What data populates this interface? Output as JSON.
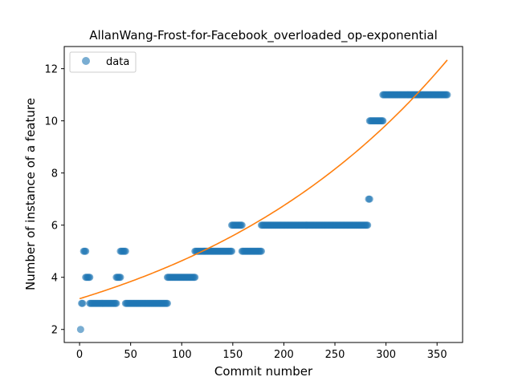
{
  "chart_data": {
    "type": "scatter",
    "title": "AllanWang-Frost-for-Facebook_overloaded_op-exponential",
    "xlabel": "Commit number",
    "ylabel": "Number of instance of a feature",
    "xlim": [
      -15,
      375
    ],
    "ylim": [
      1.5,
      12.85
    ],
    "xticks": [
      0,
      50,
      100,
      150,
      200,
      250,
      300,
      350
    ],
    "yticks": [
      2,
      4,
      6,
      8,
      10,
      12
    ],
    "grid": false,
    "legend": {
      "position": "top-left",
      "entries": [
        "data"
      ]
    },
    "colors": {
      "points": "#1f77b4",
      "fit": "#ff7f0e"
    },
    "series": [
      {
        "name": "data",
        "kind": "scatter",
        "segments": [
          {
            "x_start": 1,
            "x_end": 1,
            "y": 2
          },
          {
            "x_start": 2,
            "x_end": 3,
            "y": 3
          },
          {
            "x_start": 4,
            "x_end": 6,
            "y": 5
          },
          {
            "x_start": 6,
            "x_end": 10,
            "y": 4
          },
          {
            "x_start": 10,
            "x_end": 36,
            "y": 3
          },
          {
            "x_start": 36,
            "x_end": 40,
            "y": 4
          },
          {
            "x_start": 40,
            "x_end": 45,
            "y": 5
          },
          {
            "x_start": 45,
            "x_end": 86,
            "y": 3
          },
          {
            "x_start": 86,
            "x_end": 113,
            "y": 4
          },
          {
            "x_start": 113,
            "x_end": 149,
            "y": 5
          },
          {
            "x_start": 149,
            "x_end": 159,
            "y": 6
          },
          {
            "x_start": 159,
            "x_end": 178,
            "y": 5
          },
          {
            "x_start": 178,
            "x_end": 282,
            "y": 6
          },
          {
            "x_start": 283,
            "x_end": 284,
            "y": 7
          },
          {
            "x_start": 284,
            "x_end": 297,
            "y": 10
          },
          {
            "x_start": 297,
            "x_end": 360,
            "y": 11
          }
        ]
      },
      {
        "name": "",
        "kind": "line",
        "model": "exponential",
        "a": 3.18,
        "b": 0.003765,
        "x_range": [
          0,
          360
        ]
      }
    ]
  }
}
